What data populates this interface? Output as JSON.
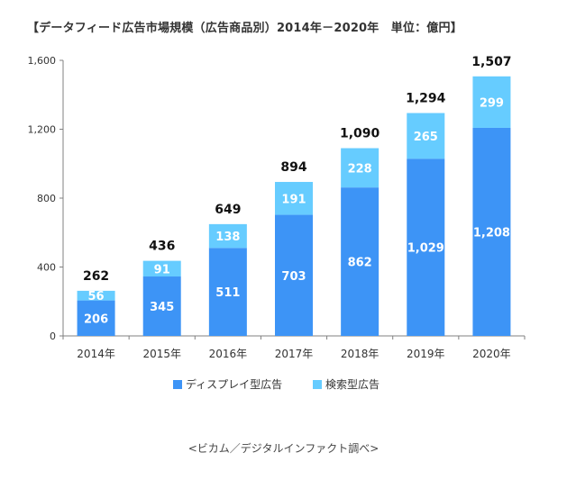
{
  "title": "【データフィード広告市場規模（広告商品別）2014年－2020年　単位：億円】",
  "source": "<ビカム／デジタルインファクト調べ>",
  "chart_data": {
    "type": "bar",
    "stacked": true,
    "categories": [
      "2014年",
      "2015年",
      "2016年",
      "2017年",
      "2018年",
      "2019年",
      "2020年"
    ],
    "series": [
      {
        "name": "ディスプレイ型広告",
        "color": "#3d94f6",
        "values": [
          206,
          345,
          511,
          703,
          862,
          1029,
          1208
        ]
      },
      {
        "name": "検索型広告",
        "color": "#66ccff",
        "values": [
          56,
          91,
          138,
          191,
          228,
          265,
          299
        ]
      }
    ],
    "totals": [
      262,
      436,
      649,
      894,
      1090,
      1294,
      1507
    ],
    "value_labels": [
      [
        "206",
        "345",
        "511",
        "703",
        "862",
        "1,029",
        "1,208"
      ],
      [
        "56",
        "91",
        "138",
        "191",
        "228",
        "265",
        "299"
      ]
    ],
    "total_labels": [
      "262",
      "436",
      "649",
      "894",
      "1,090",
      "1,294",
      "1,507"
    ],
    "y_ticks": [
      0,
      400,
      800,
      1200,
      1600
    ],
    "y_tick_labels": [
      "0",
      "400",
      "800",
      "1,200",
      "1,600"
    ],
    "ylim": [
      0,
      1600
    ],
    "grid": false,
    "legend_position": "bottom"
  }
}
